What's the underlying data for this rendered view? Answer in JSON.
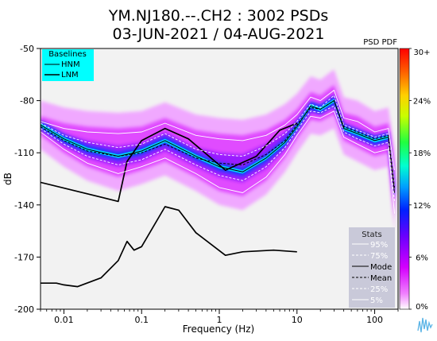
{
  "chart_data": {
    "type": "heatmap",
    "title_line1": "YM.NJ180.--.CH2 : 3002 PSDs",
    "title_line2": "03-JUN-2021 / 04-AUG-2021",
    "xlabel": "Frequency (Hz)",
    "ylabel": "dB",
    "x_scale": "log",
    "xlim": [
      0.005,
      200
    ],
    "ylim": [
      -200,
      -50
    ],
    "x_ticks": [
      0.01,
      0.1,
      1,
      10,
      100
    ],
    "x_tick_labels": [
      "0.01",
      "0.1",
      "1",
      "10",
      "100"
    ],
    "y_ticks": [
      -200,
      -170,
      -140,
      -110,
      -80,
      -50
    ],
    "y_tick_labels": [
      "-200",
      "-170",
      "-140",
      "-110",
      "-80",
      "-50"
    ],
    "grid": false,
    "colorbar": {
      "title": "PSD PDF",
      "labels": [
        "30+",
        "24%",
        "18%",
        "12%",
        "6%",
        "0%"
      ],
      "colors": [
        "#ffffff",
        "#e600ff",
        "#6a00ff",
        "#0020ff",
        "#00c8ff",
        "#00ffb0",
        "#30ff00",
        "#ffff00",
        "#ff8000",
        "#ff0000"
      ]
    },
    "baselines_legend": {
      "title": "Baselines",
      "entries": [
        "HNM",
        "LNM"
      ],
      "background": "#00ffff"
    },
    "stats_legend": {
      "title": "Stats",
      "entries": [
        "95%",
        "75%",
        "Mode",
        "Mean",
        "25%",
        "5%"
      ],
      "background": "#c9c9d9"
    },
    "series": [
      {
        "name": "HNM",
        "color": "#000000",
        "x": [
          0.005,
          0.05,
          0.065,
          0.1,
          0.2,
          0.4,
          1.2,
          3,
          6,
          10
        ],
        "y": [
          -127,
          -138,
          -115,
          -103,
          -96,
          -102,
          -120,
          -112,
          -97,
          -93
        ]
      },
      {
        "name": "LNM",
        "color": "#000000",
        "x": [
          0.005,
          0.008,
          0.01,
          0.015,
          0.03,
          0.05,
          0.065,
          0.08,
          0.1,
          0.2,
          0.3,
          0.5,
          1.2,
          2,
          5,
          10
        ],
        "y": [
          -185,
          -185,
          -186,
          -187,
          -182,
          -172,
          -161,
          -166,
          -164,
          -141,
          -143,
          -156,
          -169,
          -167,
          -166,
          -167
        ]
      },
      {
        "name": "95%",
        "color": "#ffffff",
        "x": [
          0.005,
          0.01,
          0.02,
          0.05,
          0.1,
          0.2,
          0.5,
          1,
          2,
          4,
          7,
          10,
          15,
          20,
          30,
          40,
          60,
          100,
          150,
          180
        ],
        "y": [
          -92,
          -96,
          -98,
          -99,
          -98,
          -93,
          -100,
          -102,
          -103,
          -100,
          -94,
          -88,
          -78,
          -80,
          -74,
          -90,
          -92,
          -98,
          -96,
          -120
        ]
      },
      {
        "name": "75%",
        "color": "#ffffff",
        "x": [
          0.005,
          0.01,
          0.02,
          0.05,
          0.1,
          0.2,
          0.5,
          1,
          2,
          4,
          7,
          10,
          15,
          20,
          30,
          40,
          60,
          100,
          150,
          180
        ],
        "y": [
          -93,
          -100,
          -104,
          -107,
          -105,
          -99,
          -108,
          -111,
          -112,
          -106,
          -99,
          -92,
          -82,
          -84,
          -77,
          -94,
          -97,
          -101,
          -99,
          -128
        ]
      },
      {
        "name": "Mode",
        "color": "#000000",
        "x": [
          0.005,
          0.01,
          0.02,
          0.05,
          0.1,
          0.2,
          0.5,
          1,
          2,
          4,
          7,
          10,
          15,
          20,
          30,
          40,
          60,
          100,
          150,
          180
        ],
        "y": [
          -94,
          -102,
          -108,
          -112,
          -109,
          -103,
          -112,
          -118,
          -121,
          -113,
          -104,
          -95,
          -83,
          -85,
          -80,
          -96,
          -99,
          -103,
          -101,
          -133
        ]
      },
      {
        "name": "Mean",
        "color": "#000000",
        "x": [
          0.005,
          0.01,
          0.02,
          0.05,
          0.1,
          0.2,
          0.5,
          1,
          2,
          4,
          7,
          10,
          15,
          20,
          30,
          40,
          60,
          100,
          150,
          180
        ],
        "y": [
          -95,
          -103,
          -109,
          -112,
          -110,
          -105,
          -113,
          -116,
          -117,
          -111,
          -103,
          -94,
          -84,
          -85,
          -80,
          -95,
          -98,
          -102,
          -100,
          -130
        ]
      },
      {
        "name": "25%",
        "color": "#ffffff",
        "x": [
          0.005,
          0.01,
          0.02,
          0.05,
          0.1,
          0.2,
          0.5,
          1,
          2,
          4,
          7,
          10,
          15,
          20,
          30,
          40,
          60,
          100,
          150,
          180
        ],
        "y": [
          -96,
          -105,
          -112,
          -117,
          -114,
          -108,
          -117,
          -123,
          -126,
          -118,
          -107,
          -97,
          -86,
          -87,
          -83,
          -98,
          -102,
          -106,
          -104,
          -138
        ]
      },
      {
        "name": "5%",
        "color": "#ffffff",
        "x": [
          0.005,
          0.01,
          0.02,
          0.05,
          0.1,
          0.2,
          0.5,
          1,
          2,
          4,
          7,
          10,
          15,
          20,
          30,
          40,
          60,
          100,
          150,
          180
        ],
        "y": [
          -98,
          -108,
          -116,
          -122,
          -118,
          -113,
          -122,
          -130,
          -133,
          -124,
          -111,
          -100,
          -89,
          -90,
          -86,
          -101,
          -105,
          -110,
          -108,
          -145
        ]
      }
    ]
  }
}
